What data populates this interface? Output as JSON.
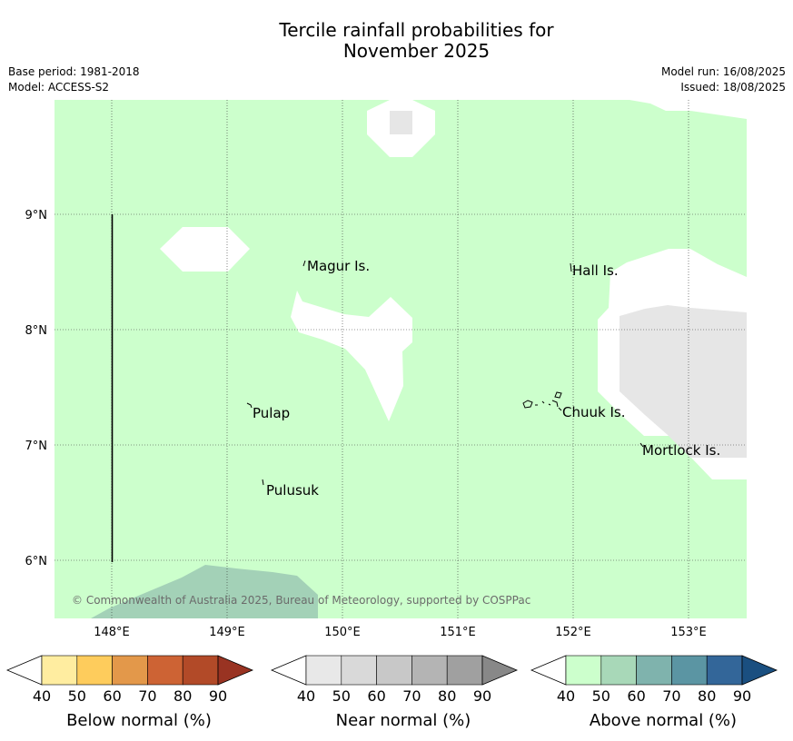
{
  "title": {
    "line1": "Tercile rainfall probabilities for",
    "line2": "November 2025"
  },
  "meta": {
    "base_period": "Base period: 1981-2018",
    "model": "Model: ACCESS-S2",
    "model_run": "Model run: 16/08/2025",
    "issued": "Issued: 18/08/2025"
  },
  "map": {
    "longitude_ticks": [
      "148°E",
      "149°E",
      "150°E",
      "151°E",
      "152°E",
      "153°E"
    ],
    "latitude_ticks": [
      "9°N",
      "8°N",
      "7°N",
      "6°N"
    ],
    "places": [
      {
        "name": "Magur Is.",
        "lon": 149.73,
        "lat": 8.55
      },
      {
        "name": "Hall Is.",
        "lon": 151.97,
        "lat": 8.51
      },
      {
        "name": "Pulap",
        "lon": 149.2,
        "lat": 7.27
      },
      {
        "name": "Chuuk Is.",
        "lon": 151.85,
        "lat": 7.28
      },
      {
        "name": "Mortlock Is.",
        "lon": 152.6,
        "lat": 6.95
      },
      {
        "name": "Pulusuk",
        "lon": 149.3,
        "lat": 6.6
      }
    ],
    "copyright": "© Commonwealth of Australia 2025, Bureau of Meteorology, supported by COSPPac",
    "colors": {
      "above_40_50": "#ccffcc",
      "above_50_60": "#a3d1b7",
      "near_40_50": "#e6e6e6",
      "no_dominant": "#ffffff"
    }
  },
  "legends": [
    {
      "label": "Below normal (%)",
      "ticks": [
        "40",
        "50",
        "60",
        "70",
        "80",
        "90"
      ],
      "colors": [
        "#ffffff",
        "#ffeda0",
        "#fecc5c",
        "#e3984a",
        "#cd6334",
        "#b24a28",
        "#993322"
      ]
    },
    {
      "label": "Near normal (%)",
      "ticks": [
        "40",
        "50",
        "60",
        "70",
        "80",
        "90"
      ],
      "colors": [
        "#ffffff",
        "#e8e8e8",
        "#d9d9d9",
        "#c8c8c8",
        "#b4b4b4",
        "#a0a0a0",
        "#888888"
      ]
    },
    {
      "label": "Above normal (%)",
      "ticks": [
        "40",
        "50",
        "60",
        "70",
        "80",
        "90"
      ],
      "colors": [
        "#ffffff",
        "#ccffcc",
        "#a8d8b8",
        "#7fb3ad",
        "#5b95a3",
        "#336699",
        "#1a4f80"
      ]
    }
  ]
}
